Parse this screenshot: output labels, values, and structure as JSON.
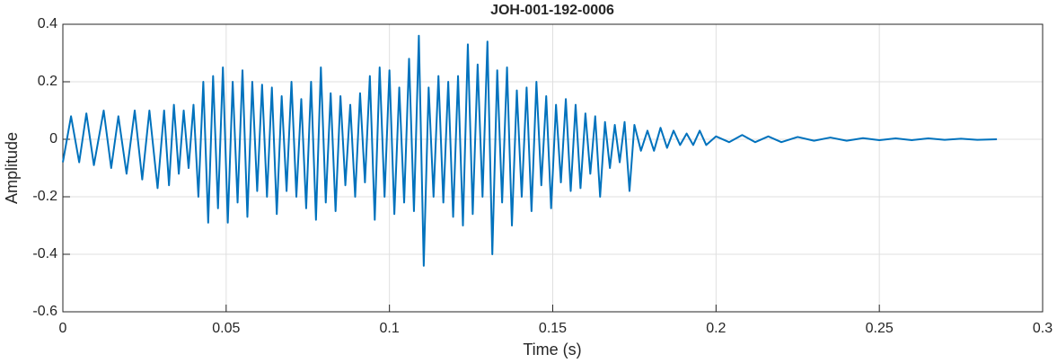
{
  "chart_data": {
    "type": "line",
    "title": "JOH-001-192-0006",
    "x_label": "Time (s)",
    "y_label": "Amplitude",
    "color": "#0072bd",
    "grid": true,
    "xlim": [
      0,
      0.3
    ],
    "xticks": [
      0,
      0.05,
      0.1,
      0.15,
      0.2,
      0.25,
      0.3
    ],
    "ylim": [
      -0.6,
      0.4
    ],
    "yticks": [
      -0.6,
      -0.4,
      -0.2,
      0,
      0.2,
      0.4
    ],
    "x": [
      0,
      0.0025,
      0.005,
      0.0072,
      0.0095,
      0.0125,
      0.0148,
      0.017,
      0.0195,
      0.022,
      0.0243,
      0.0265,
      0.029,
      0.031,
      0.0325,
      0.034,
      0.0355,
      0.037,
      0.0385,
      0.04,
      0.0415,
      0.043,
      0.0445,
      0.046,
      0.0475,
      0.049,
      0.0505,
      0.052,
      0.0535,
      0.055,
      0.0565,
      0.058,
      0.0595,
      0.061,
      0.0625,
      0.064,
      0.0655,
      0.067,
      0.0685,
      0.07,
      0.0715,
      0.073,
      0.0745,
      0.076,
      0.0775,
      0.079,
      0.0805,
      0.082,
      0.0835,
      0.085,
      0.0865,
      0.088,
      0.0895,
      0.091,
      0.0925,
      0.094,
      0.0955,
      0.097,
      0.0985,
      0.1,
      0.1015,
      0.103,
      0.1045,
      0.106,
      0.1075,
      0.109,
      0.1105,
      0.112,
      0.1135,
      0.115,
      0.1165,
      0.118,
      0.1195,
      0.121,
      0.1225,
      0.124,
      0.1255,
      0.127,
      0.1285,
      0.13,
      0.1315,
      0.133,
      0.1345,
      0.136,
      0.1375,
      0.139,
      0.1405,
      0.142,
      0.1435,
      0.145,
      0.1465,
      0.148,
      0.1495,
      0.151,
      0.1525,
      0.154,
      0.1555,
      0.157,
      0.1585,
      0.16,
      0.1615,
      0.163,
      0.1645,
      0.166,
      0.1675,
      0.169,
      0.1705,
      0.172,
      0.1735,
      0.175,
      0.177,
      0.179,
      0.181,
      0.183,
      0.185,
      0.187,
      0.189,
      0.191,
      0.193,
      0.195,
      0.197,
      0.2,
      0.204,
      0.208,
      0.212,
      0.216,
      0.22,
      0.225,
      0.23,
      0.235,
      0.24,
      0.245,
      0.25,
      0.255,
      0.26,
      0.265,
      0.27,
      0.275,
      0.28,
      0.286
    ],
    "values": [
      -0.08,
      0.08,
      -0.08,
      0.09,
      -0.09,
      0.1,
      -0.1,
      0.08,
      -0.12,
      0.1,
      -0.14,
      0.1,
      -0.17,
      0.1,
      -0.16,
      0.12,
      -0.12,
      0.1,
      -0.1,
      0.12,
      -0.2,
      0.2,
      -0.29,
      0.22,
      -0.24,
      0.25,
      -0.29,
      0.2,
      -0.22,
      0.24,
      -0.27,
      0.2,
      -0.18,
      0.19,
      -0.2,
      0.18,
      -0.26,
      0.15,
      -0.18,
      0.2,
      -0.2,
      0.14,
      -0.24,
      0.2,
      -0.28,
      0.25,
      -0.22,
      0.16,
      -0.25,
      0.15,
      -0.16,
      0.12,
      -0.2,
      0.16,
      -0.15,
      0.22,
      -0.28,
      0.25,
      -0.2,
      0.24,
      -0.26,
      0.18,
      -0.22,
      0.28,
      -0.25,
      0.36,
      -0.44,
      0.18,
      -0.2,
      0.22,
      -0.22,
      0.2,
      -0.27,
      0.22,
      -0.3,
      0.33,
      -0.26,
      0.26,
      -0.2,
      0.34,
      -0.4,
      0.24,
      -0.22,
      0.25,
      -0.3,
      0.17,
      -0.2,
      0.18,
      -0.25,
      0.2,
      -0.16,
      0.15,
      -0.24,
      0.12,
      -0.15,
      0.14,
      -0.18,
      0.12,
      -0.17,
      0.09,
      -0.12,
      0.08,
      -0.2,
      0.06,
      -0.1,
      0.05,
      -0.08,
      0.06,
      -0.18,
      0.05,
      -0.04,
      0.03,
      -0.04,
      0.04,
      -0.03,
      0.03,
      -0.02,
      0.02,
      -0.02,
      0.03,
      -0.02,
      0.01,
      -0.01,
      0.015,
      -0.01,
      0.01,
      -0.01,
      0.008,
      -0.005,
      0.006,
      -0.005,
      0.004,
      -0.003,
      0.003,
      -0.003,
      0.003,
      -0.002,
      0.002,
      -0.002,
      0
    ]
  }
}
